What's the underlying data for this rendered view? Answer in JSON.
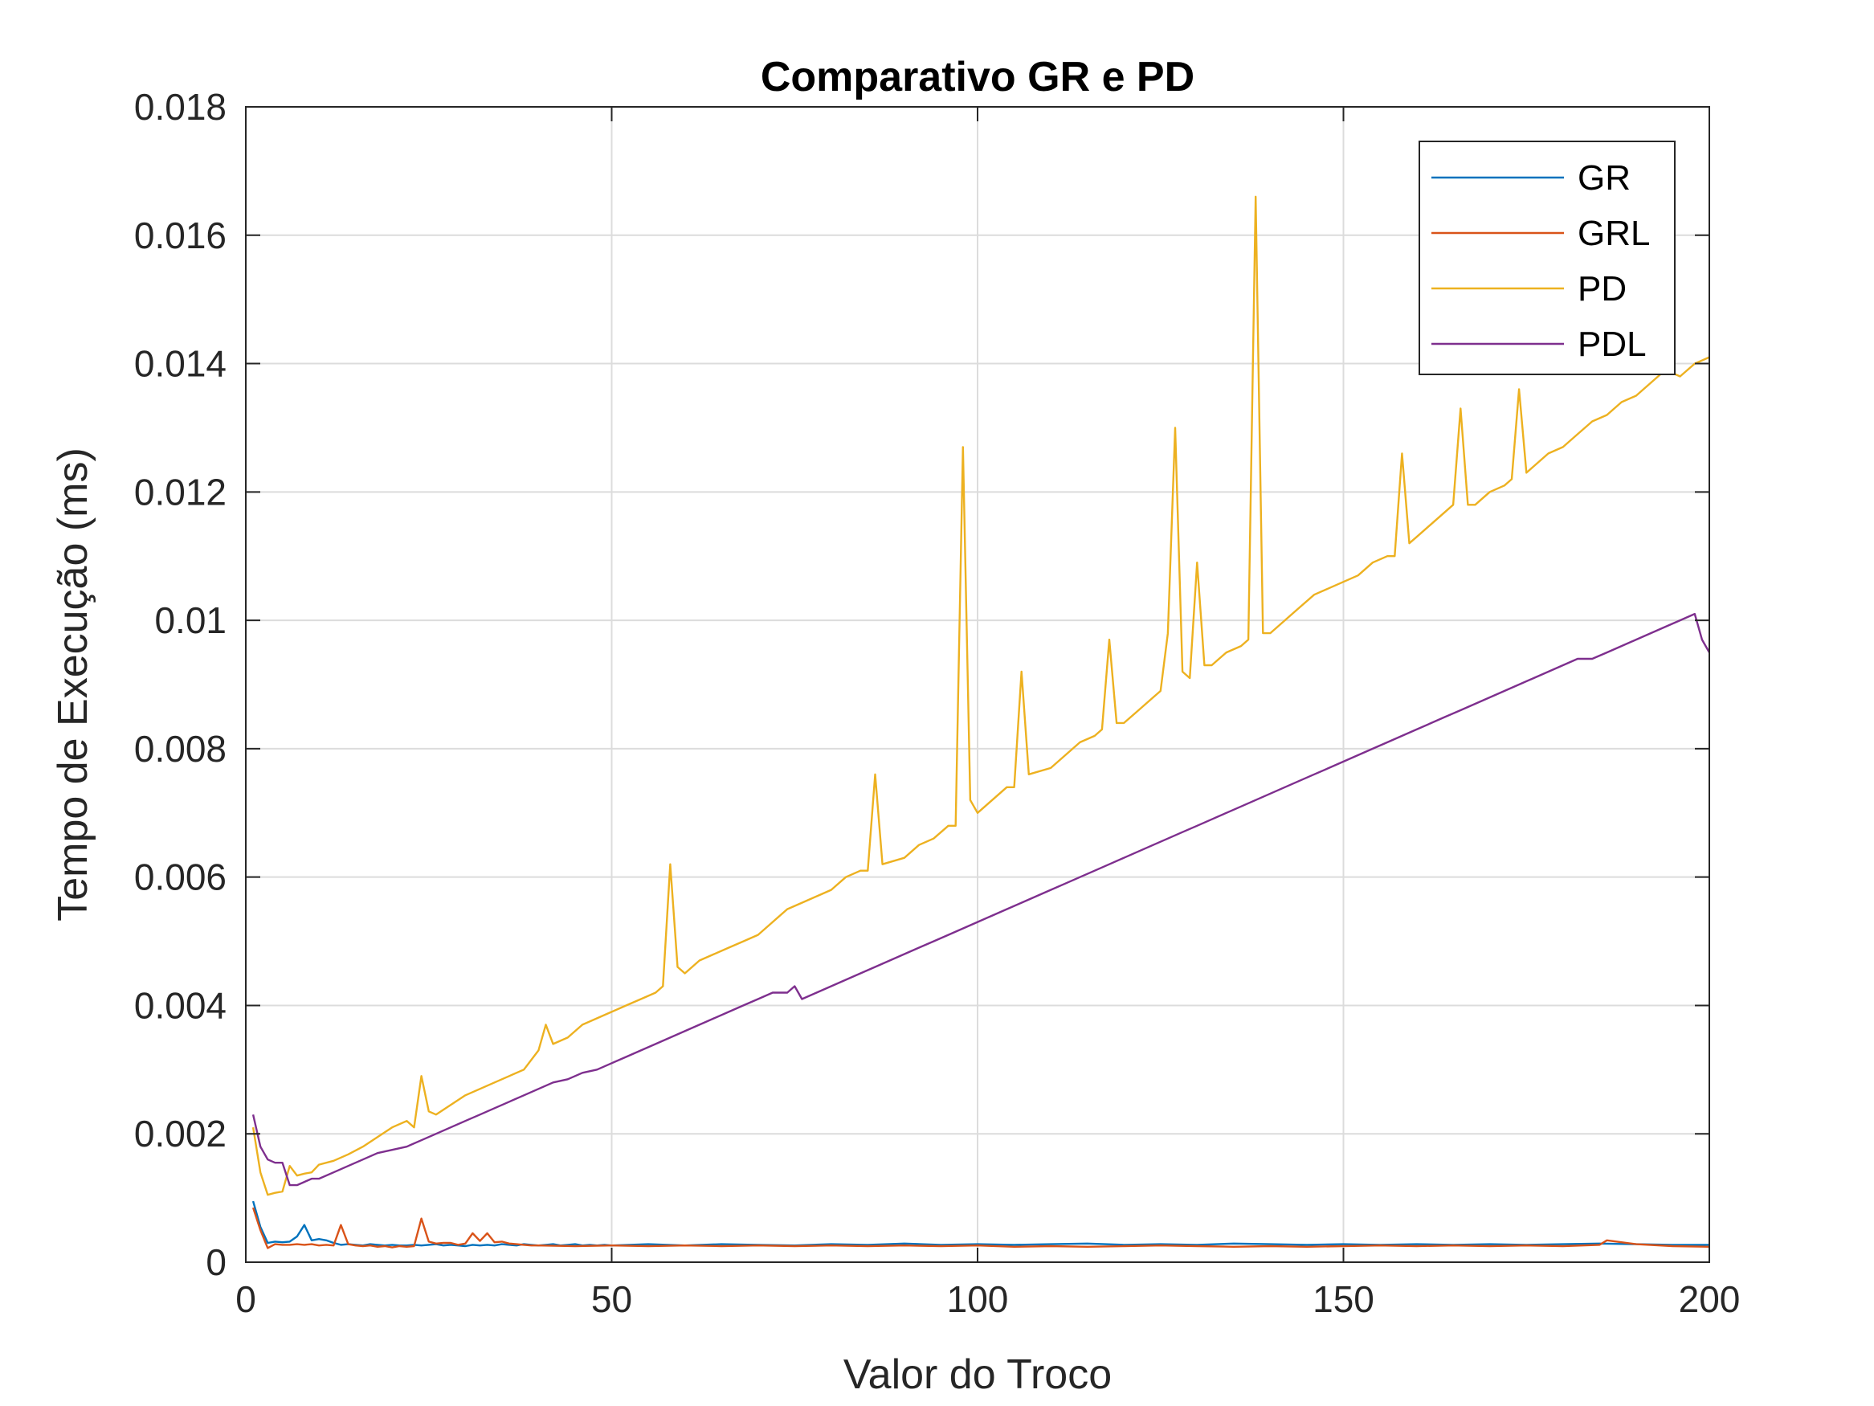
{
  "chart_data": {
    "type": "line",
    "title": "Comparativo GR e PD",
    "xlabel": "Valor do Troco",
    "ylabel": "Tempo de Execução (ms)",
    "xlim": [
      0,
      200
    ],
    "ylim": [
      0,
      0.018
    ],
    "x_ticks": [
      0,
      50,
      100,
      150,
      200
    ],
    "x_tick_labels": [
      "0",
      "50",
      "100",
      "150",
      "200"
    ],
    "y_ticks": [
      0,
      0.002,
      0.004,
      0.006,
      0.008,
      0.01,
      0.012,
      0.014,
      0.016,
      0.018
    ],
    "y_tick_labels": [
      "0",
      "0.002",
      "0.004",
      "0.006",
      "0.008",
      "0.01",
      "0.012",
      "0.014",
      "0.016",
      "0.018"
    ],
    "grid": true,
    "legend_position": "top-right",
    "series": [
      {
        "name": "GR",
        "color": "#0072BD",
        "x": [
          1,
          2,
          3,
          4,
          5,
          6,
          7,
          8,
          9,
          10,
          11,
          12,
          13,
          14,
          15,
          16,
          17,
          18,
          19,
          20,
          21,
          22,
          23,
          24,
          25,
          26,
          27,
          28,
          29,
          30,
          31,
          32,
          33,
          34,
          35,
          36,
          37,
          38,
          39,
          40,
          41,
          42,
          43,
          44,
          45,
          46,
          47,
          48,
          49,
          50,
          55,
          60,
          65,
          70,
          75,
          80,
          85,
          90,
          95,
          100,
          105,
          110,
          115,
          120,
          125,
          130,
          135,
          140,
          145,
          150,
          155,
          160,
          165,
          170,
          175,
          180,
          185,
          190,
          195,
          200
        ],
        "y": [
          0.00095,
          0.00055,
          0.0003,
          0.00032,
          0.00031,
          0.00032,
          0.0004,
          0.00058,
          0.00034,
          0.00036,
          0.00034,
          0.0003,
          0.00027,
          0.00028,
          0.00027,
          0.00026,
          0.00028,
          0.00027,
          0.00026,
          0.00027,
          0.00026,
          0.00026,
          0.00027,
          0.00026,
          0.00027,
          0.00028,
          0.00026,
          0.00027,
          0.00026,
          0.00025,
          0.00027,
          0.00026,
          0.00027,
          0.00026,
          0.00028,
          0.00027,
          0.00026,
          0.00028,
          0.00027,
          0.00026,
          0.00027,
          0.00028,
          0.00026,
          0.00027,
          0.00028,
          0.00026,
          0.00027,
          0.00026,
          0.00027,
          0.00026,
          0.00028,
          0.00026,
          0.00028,
          0.00027,
          0.00026,
          0.00028,
          0.00027,
          0.00029,
          0.00027,
          0.00028,
          0.00027,
          0.00028,
          0.00029,
          0.00027,
          0.00028,
          0.00027,
          0.00029,
          0.00028,
          0.00027,
          0.00028,
          0.00027,
          0.00028,
          0.00027,
          0.00028,
          0.00027,
          0.00028,
          0.00029,
          0.00028,
          0.00027,
          0.00027
        ]
      },
      {
        "name": "GRL",
        "color": "#D95319",
        "x": [
          1,
          2,
          3,
          4,
          5,
          6,
          7,
          8,
          9,
          10,
          11,
          12,
          13,
          14,
          15,
          16,
          17,
          18,
          19,
          20,
          21,
          22,
          23,
          24,
          25,
          26,
          27,
          28,
          29,
          30,
          31,
          32,
          33,
          34,
          35,
          36,
          37,
          38,
          39,
          40,
          45,
          50,
          55,
          60,
          65,
          70,
          75,
          80,
          85,
          90,
          95,
          100,
          105,
          110,
          115,
          120,
          125,
          130,
          135,
          140,
          145,
          150,
          155,
          160,
          165,
          170,
          175,
          180,
          185,
          186,
          190,
          195,
          200
        ],
        "y": [
          0.00085,
          0.0005,
          0.00022,
          0.00028,
          0.00027,
          0.00027,
          0.00028,
          0.00027,
          0.00028,
          0.00026,
          0.00027,
          0.00026,
          0.00058,
          0.00028,
          0.00026,
          0.00025,
          0.00026,
          0.00024,
          0.00025,
          0.00023,
          0.00025,
          0.00024,
          0.00025,
          0.00068,
          0.00032,
          0.00029,
          0.0003,
          0.0003,
          0.00027,
          0.00029,
          0.00045,
          0.00033,
          0.00045,
          0.00031,
          0.00032,
          0.00029,
          0.00028,
          0.00027,
          0.00026,
          0.00026,
          0.00025,
          0.00026,
          0.00025,
          0.00026,
          0.00025,
          0.00026,
          0.00025,
          0.00026,
          0.00025,
          0.00026,
          0.00025,
          0.00026,
          0.00024,
          0.00025,
          0.00024,
          0.00025,
          0.00026,
          0.00025,
          0.00024,
          0.00025,
          0.00024,
          0.00025,
          0.00026,
          0.00025,
          0.00026,
          0.00025,
          0.00026,
          0.00025,
          0.00027,
          0.00034,
          0.00028,
          0.00025,
          0.00024
        ]
      },
      {
        "name": "PD",
        "color": "#EDB120",
        "x": [
          1,
          2,
          3,
          4,
          5,
          6,
          7,
          8,
          9,
          10,
          12,
          14,
          16,
          18,
          20,
          22,
          23,
          24,
          25,
          26,
          28,
          30,
          32,
          34,
          36,
          38,
          40,
          41,
          42,
          44,
          46,
          48,
          50,
          52,
          54,
          56,
          57,
          58,
          59,
          60,
          62,
          64,
          66,
          68,
          70,
          72,
          74,
          76,
          78,
          80,
          82,
          84,
          85,
          86,
          87,
          90,
          92,
          94,
          96,
          97,
          98,
          99,
          100,
          102,
          104,
          105,
          106,
          107,
          110,
          112,
          114,
          116,
          117,
          118,
          119,
          120,
          122,
          124,
          125,
          126,
          127,
          128,
          129,
          130,
          131,
          132,
          134,
          136,
          137,
          138,
          139,
          140,
          142,
          144,
          146,
          148,
          150,
          152,
          154,
          156,
          157,
          158,
          159,
          160,
          162,
          164,
          165,
          166,
          167,
          168,
          170,
          172,
          173,
          174,
          175,
          176,
          178,
          180,
          182,
          184,
          186,
          188,
          190,
          192,
          194,
          196,
          198,
          200
        ],
        "y": [
          0.0021,
          0.0014,
          0.00105,
          0.00108,
          0.0011,
          0.0015,
          0.00135,
          0.00138,
          0.0014,
          0.00152,
          0.00158,
          0.00168,
          0.0018,
          0.00195,
          0.0021,
          0.0022,
          0.0021,
          0.0029,
          0.00235,
          0.0023,
          0.00245,
          0.0026,
          0.0027,
          0.0028,
          0.0029,
          0.003,
          0.0033,
          0.0037,
          0.0034,
          0.0035,
          0.0037,
          0.0038,
          0.0039,
          0.004,
          0.0041,
          0.0042,
          0.0043,
          0.0062,
          0.0046,
          0.0045,
          0.0047,
          0.0048,
          0.0049,
          0.005,
          0.0051,
          0.0053,
          0.0055,
          0.0056,
          0.0057,
          0.0058,
          0.006,
          0.0061,
          0.0061,
          0.0076,
          0.0062,
          0.0063,
          0.0065,
          0.0066,
          0.0068,
          0.0068,
          0.0127,
          0.0072,
          0.007,
          0.0072,
          0.0074,
          0.0074,
          0.0092,
          0.0076,
          0.0077,
          0.0079,
          0.0081,
          0.0082,
          0.0083,
          0.0097,
          0.0084,
          0.0084,
          0.0086,
          0.0088,
          0.0089,
          0.0098,
          0.013,
          0.0092,
          0.0091,
          0.0109,
          0.0093,
          0.0093,
          0.0095,
          0.0096,
          0.0097,
          0.0166,
          0.0098,
          0.0098,
          0.01,
          0.0102,
          0.0104,
          0.0105,
          0.0106,
          0.0107,
          0.0109,
          0.011,
          0.011,
          0.0126,
          0.0112,
          0.0113,
          0.0115,
          0.0117,
          0.0118,
          0.0133,
          0.0118,
          0.0118,
          0.012,
          0.0121,
          0.0122,
          0.0136,
          0.0123,
          0.0124,
          0.0126,
          0.0127,
          0.0129,
          0.0131,
          0.0132,
          0.0134,
          0.0135,
          0.0137,
          0.0139,
          0.0138,
          0.014,
          0.0141
        ]
      },
      {
        "name": "PDL",
        "color": "#7E2F8E",
        "x": [
          1,
          2,
          3,
          4,
          5,
          6,
          7,
          8,
          9,
          10,
          12,
          14,
          16,
          18,
          20,
          22,
          24,
          26,
          28,
          30,
          32,
          34,
          36,
          38,
          40,
          42,
          44,
          46,
          48,
          50,
          52,
          54,
          56,
          58,
          60,
          62,
          64,
          66,
          68,
          70,
          72,
          74,
          75,
          76,
          78,
          80,
          82,
          84,
          86,
          88,
          90,
          92,
          94,
          96,
          98,
          100,
          102,
          104,
          106,
          108,
          110,
          112,
          114,
          116,
          118,
          120,
          122,
          124,
          126,
          128,
          130,
          132,
          134,
          136,
          138,
          140,
          142,
          144,
          146,
          148,
          150,
          152,
          154,
          156,
          158,
          160,
          162,
          164,
          166,
          168,
          170,
          172,
          174,
          176,
          178,
          180,
          182,
          184,
          186,
          188,
          190,
          192,
          194,
          196,
          198,
          199,
          200
        ],
        "y": [
          0.0023,
          0.0018,
          0.0016,
          0.00155,
          0.00155,
          0.0012,
          0.0012,
          0.00125,
          0.0013,
          0.0013,
          0.0014,
          0.0015,
          0.0016,
          0.0017,
          0.00175,
          0.0018,
          0.0019,
          0.002,
          0.0021,
          0.0022,
          0.0023,
          0.0024,
          0.0025,
          0.0026,
          0.0027,
          0.0028,
          0.00285,
          0.00295,
          0.003,
          0.0031,
          0.0032,
          0.0033,
          0.0034,
          0.0035,
          0.0036,
          0.0037,
          0.0038,
          0.0039,
          0.004,
          0.0041,
          0.0042,
          0.0042,
          0.0043,
          0.0041,
          0.0042,
          0.0043,
          0.0044,
          0.0045,
          0.0046,
          0.0047,
          0.0048,
          0.0049,
          0.005,
          0.0051,
          0.0052,
          0.0053,
          0.0054,
          0.0055,
          0.0056,
          0.0057,
          0.0058,
          0.0059,
          0.006,
          0.0061,
          0.0062,
          0.0063,
          0.0064,
          0.0065,
          0.0066,
          0.0067,
          0.0068,
          0.0069,
          0.007,
          0.0071,
          0.0072,
          0.0073,
          0.0074,
          0.0075,
          0.0076,
          0.0077,
          0.0078,
          0.0079,
          0.008,
          0.0081,
          0.0082,
          0.0083,
          0.0084,
          0.0085,
          0.0086,
          0.0087,
          0.0088,
          0.0089,
          0.009,
          0.0091,
          0.0092,
          0.0093,
          0.0094,
          0.0094,
          0.0095,
          0.0096,
          0.0097,
          0.0098,
          0.0099,
          0.01,
          0.0101,
          0.0097,
          0.0095
        ]
      }
    ]
  }
}
